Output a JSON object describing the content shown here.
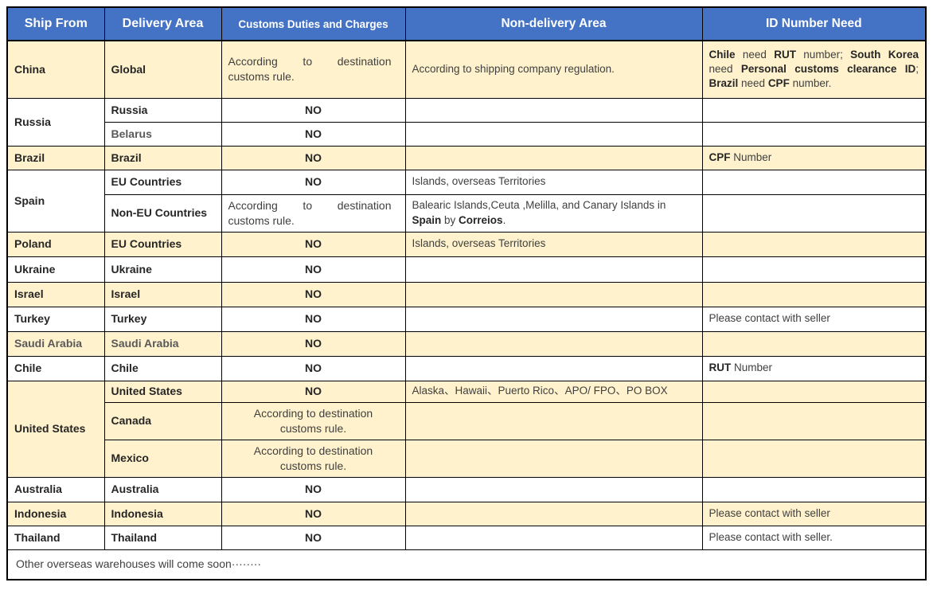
{
  "colors": {
    "header_bg": "#4472C4",
    "header_text": "#FFFFFF",
    "row_cream": "#FFF2CC",
    "row_white": "#FFFFFF",
    "border": "#000000"
  },
  "table": {
    "headers": [
      {
        "label": "Ship From"
      },
      {
        "label": "Delivery Area"
      },
      {
        "label": "Customs Duties and Charges"
      },
      {
        "label": "Non-delivery Area"
      },
      {
        "label": "ID Number Need"
      }
    ],
    "groups": [
      {
        "ship_from": "China",
        "bg": "cream",
        "rows": [
          {
            "delivery": "Global",
            "h": 72,
            "customs": {
              "text": "According to destination customs rule.",
              "style": "justify"
            },
            "nd": [
              {
                "t": "According to shipping company regulation."
              }
            ],
            "id": [
              {
                "t": "Chile",
                "b": 1
              },
              {
                "t": " need "
              },
              {
                "t": "RUT",
                "b": 1
              },
              {
                "t": " number; "
              },
              {
                "t": "South Korea",
                "b": 1
              },
              {
                "t": " need "
              },
              {
                "t": "Personal customs clearance ID",
                "b": 1
              },
              {
                "t": "; "
              },
              {
                "t": "Brazil",
                "b": 1
              },
              {
                "t": " need "
              },
              {
                "t": "CPF",
                "b": 1
              },
              {
                "t": " number."
              }
            ],
            "id_justify": 1
          }
        ]
      },
      {
        "ship_from": "Russia",
        "bg": "white",
        "rows": [
          {
            "delivery": "Russia",
            "h": 30,
            "customs": {
              "text": "NO",
              "style": "no"
            },
            "nd": [],
            "id": []
          },
          {
            "delivery": "Belarus",
            "muted": 1,
            "h": 30,
            "customs": {
              "text": "NO",
              "style": "no"
            },
            "nd": [],
            "id": []
          }
        ]
      },
      {
        "ship_from": "Brazil",
        "bg": "cream",
        "rows": [
          {
            "delivery": "Brazil",
            "h": 30,
            "customs": {
              "text": "NO",
              "style": "no"
            },
            "nd": [],
            "id": [
              {
                "t": "CPF",
                "b": 1
              },
              {
                "t": " Number"
              }
            ]
          }
        ]
      },
      {
        "ship_from": "Spain",
        "bg": "white",
        "rows": [
          {
            "delivery": "EU Countries",
            "h": 31,
            "customs": {
              "text": "NO",
              "style": "no"
            },
            "nd": [
              {
                "t": "Islands, overseas Territories"
              }
            ],
            "id": []
          },
          {
            "delivery": "Non-EU Countries",
            "h": 47,
            "customs": {
              "text": "According to destination customs rule.",
              "style": "justify"
            },
            "nd": [
              {
                "t": "Balearic Islands,Ceuta ,Melilla, and Canary Islands in "
              },
              {
                "t": "Spain",
                "b": 1
              },
              {
                "t": " by "
              },
              {
                "t": "Correios",
                "b": 1
              },
              {
                "t": "."
              }
            ],
            "id": []
          }
        ]
      },
      {
        "ship_from": "Poland",
        "bg": "cream",
        "rows": [
          {
            "delivery": "EU Countries",
            "h": 31,
            "customs": {
              "text": "NO",
              "style": "no"
            },
            "nd": [
              {
                "t": "Islands, overseas Territories"
              }
            ],
            "id": []
          }
        ]
      },
      {
        "ship_from": "Ukraine",
        "bg": "white",
        "rows": [
          {
            "delivery": "Ukraine",
            "h": 32,
            "customs": {
              "text": "NO",
              "style": "no"
            },
            "nd": [],
            "id": []
          }
        ]
      },
      {
        "ship_from": "Israel",
        "bg": "cream",
        "rows": [
          {
            "delivery": "Israel",
            "h": 31,
            "customs": {
              "text": "NO",
              "style": "no"
            },
            "nd": [],
            "id": []
          }
        ]
      },
      {
        "ship_from": "Turkey",
        "bg": "white",
        "rows": [
          {
            "delivery": "Turkey",
            "h": 31,
            "customs": {
              "text": "NO",
              "style": "no"
            },
            "nd": [],
            "id": [
              {
                "t": "Please contact with seller"
              }
            ]
          }
        ]
      },
      {
        "ship_from": "Saudi Arabia",
        "bg": "cream",
        "muted": 1,
        "rows": [
          {
            "delivery": "Saudi Arabia",
            "muted": 1,
            "h": 31,
            "customs": {
              "text": "NO",
              "style": "no"
            },
            "nd": [],
            "id": []
          }
        ]
      },
      {
        "ship_from": "Chile",
        "bg": "white",
        "rows": [
          {
            "delivery": "Chile",
            "h": 31,
            "customs": {
              "text": "NO",
              "style": "no"
            },
            "nd": [],
            "id": [
              {
                "t": "RUT",
                "b": 1
              },
              {
                "t": " Number"
              }
            ]
          }
        ]
      },
      {
        "ship_from": "United States",
        "bg": "cream",
        "rows": [
          {
            "delivery": "United States",
            "h": 27,
            "customs": {
              "text": "NO",
              "style": "no"
            },
            "nd": [
              {
                "t": "Alaska、Hawaii、Puerto Rico、APO/ FPO、PO BOX"
              }
            ],
            "id": []
          },
          {
            "delivery": "Canada",
            "h": 47,
            "customs": {
              "text": "According to destination customs rule.",
              "style": "center"
            },
            "nd": [],
            "id": []
          },
          {
            "delivery": "Mexico",
            "h": 47,
            "customs": {
              "text": "According to destination customs rule.",
              "style": "center"
            },
            "nd": [],
            "id": []
          }
        ]
      },
      {
        "ship_from": "Australia",
        "bg": "white",
        "rows": [
          {
            "delivery": "Australia",
            "h": 31,
            "customs": {
              "text": "NO",
              "style": "no"
            },
            "nd": [],
            "id": []
          }
        ]
      },
      {
        "ship_from": "Indonesia",
        "bg": "cream",
        "rows": [
          {
            "delivery": "Indonesia",
            "h": 30,
            "customs": {
              "text": "NO",
              "style": "no"
            },
            "nd": [],
            "id": [
              {
                "t": "Please contact with seller"
              }
            ]
          }
        ]
      },
      {
        "ship_from": "Thailand",
        "bg": "white",
        "rows": [
          {
            "delivery": "Thailand",
            "h": 30,
            "customs": {
              "text": "NO",
              "style": "no"
            },
            "nd": [],
            "id": [
              {
                "t": "Please contact with seller."
              }
            ]
          }
        ]
      }
    ],
    "footer": "Other overseas warehouses will come soon········"
  }
}
